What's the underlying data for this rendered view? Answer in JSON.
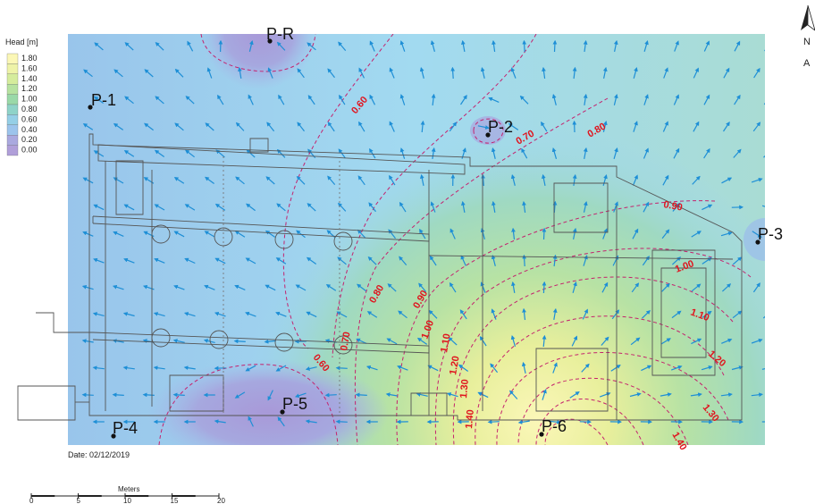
{
  "legend": {
    "title": "Head [m]",
    "entries": [
      {
        "label": "1.80",
        "color": "#fbf7b6"
      },
      {
        "label": "1.60",
        "color": "#eef3a8"
      },
      {
        "label": "1.40",
        "color": "#d5ec9c"
      },
      {
        "label": "1.20",
        "color": "#b6e2a0"
      },
      {
        "label": "1.00",
        "color": "#9ad9a8"
      },
      {
        "label": "0.80",
        "color": "#8fd3c8"
      },
      {
        "label": "0.60",
        "color": "#95cfe6"
      },
      {
        "label": "0.40",
        "color": "#9cc4ec"
      },
      {
        "label": "0.20",
        "color": "#aaa9df"
      },
      {
        "label": "0.00",
        "color": "#b09fd9"
      }
    ]
  },
  "wells": [
    {
      "label": "P-R"
    },
    {
      "label": "P-1"
    },
    {
      "label": "P-2"
    },
    {
      "label": "P-3"
    },
    {
      "label": "P-4"
    },
    {
      "label": "P-5"
    },
    {
      "label": "P-6"
    }
  ],
  "contour_labels": [
    "0.60",
    "0.70",
    "0.80",
    "0.90",
    "1.00",
    "0.80",
    "0.90",
    "1.00",
    "1.10",
    "0.70",
    "0.60",
    "1.10",
    "1.20",
    "1.30",
    "1.40",
    "1.20",
    "1.30",
    "1.40"
  ],
  "date": "Date: 02/12/2019",
  "scale": {
    "title": "Meters",
    "ticks": [
      "0",
      "5",
      "10",
      "15",
      "20"
    ]
  },
  "north": {
    "label": "N"
  },
  "colors": {
    "low": "#a79fdc",
    "mid": "#9fd6ef",
    "high": "#f6f2b8",
    "contour": "#c4226e",
    "labels": "#e0141e",
    "arrows": "#1e8fd6"
  }
}
